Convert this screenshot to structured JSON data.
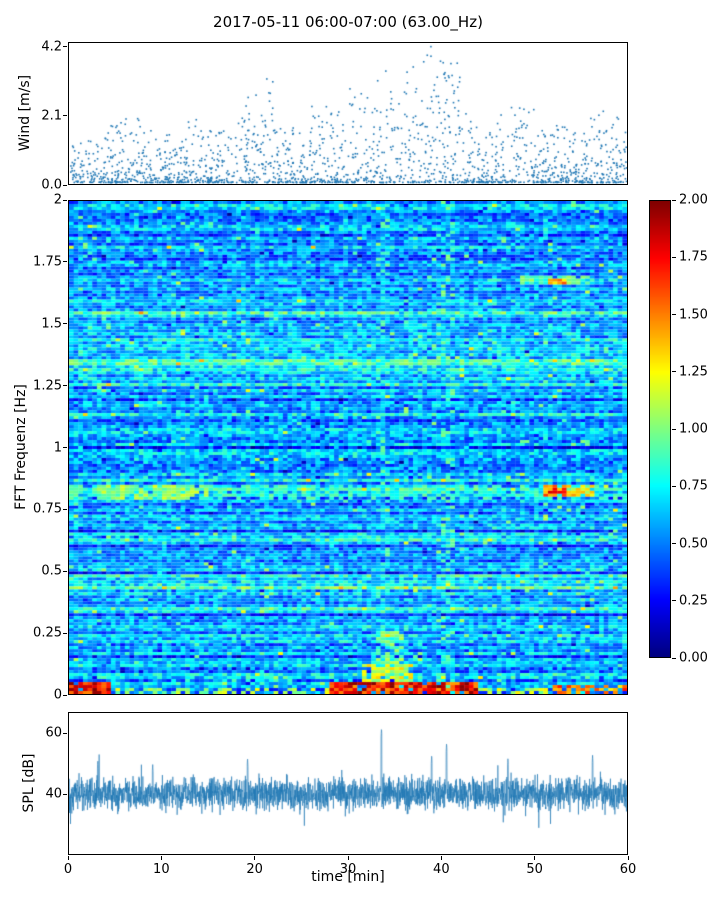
{
  "figure": {
    "title": "2017-05-11 06:00-07:00 (63.00_Hz)",
    "background": "#ffffff"
  },
  "chart_data": [
    {
      "id": "wind",
      "type": "scatter",
      "ylabel": "Wind [m/s]",
      "xlim": [
        0,
        60
      ],
      "ylim": [
        0,
        4.35
      ],
      "yticks": [
        "0.0",
        "2.1",
        "4.2"
      ],
      "ytick_values": [
        0.0,
        2.1,
        4.2
      ],
      "marker_color": "#1f77b4",
      "n_points": 1800,
      "mean_wind": 0.6,
      "max_envelope_per_2min": [
        1.5,
        1.4,
        1.9,
        2.0,
        1.6,
        1.5,
        2.0,
        1.6,
        1.6,
        2.7,
        3.3,
        1.8,
        1.7,
        2.5,
        2.2,
        3.0,
        3.5,
        2.8,
        3.7,
        4.2,
        3.9,
        2.2,
        1.7,
        2.4,
        2.3,
        1.7,
        1.8,
        1.6,
        2.2,
        2.1
      ]
    },
    {
      "id": "spectrogram",
      "type": "heatmap",
      "ylabel": "FFT Frequenz [Hz]",
      "xlim": [
        0,
        60
      ],
      "ylim": [
        0,
        2
      ],
      "yticks": [
        "2",
        "1.75",
        "1.5",
        "1.25",
        "1",
        "0.75",
        "0.5",
        "0.25",
        "0"
      ],
      "ytick_values": [
        2,
        1.75,
        1.5,
        1.25,
        1,
        0.75,
        0.5,
        0.25,
        0
      ],
      "colormap": "jet",
      "background_level": {
        "row_base_min": 0.45,
        "row_base_span": 0.25,
        "cell_noise": 0.4
      },
      "features": [
        {
          "f0": 0.0,
          "f1": 0.045,
          "x0": 0,
          "x1": 4.5,
          "value": 1.9,
          "density": 0.95
        },
        {
          "f0": 0.0,
          "f1": 0.05,
          "x0": 28,
          "x1": 44,
          "value": 1.85,
          "density": 0.9
        },
        {
          "f0": 0.0,
          "f1": 0.03,
          "x0": 5,
          "x1": 28,
          "value": 1.15,
          "density": 0.45
        },
        {
          "f0": 0.0,
          "f1": 0.03,
          "x0": 44,
          "x1": 51.5,
          "value": 1.2,
          "density": 0.5
        },
        {
          "f0": 0.0,
          "f1": 0.035,
          "x0": 51.5,
          "x1": 60,
          "value": 1.6,
          "density": 0.5
        },
        {
          "f0": 0.04,
          "f1": 0.09,
          "x0": 0,
          "x1": 60,
          "value": 0.9,
          "density": 0.2
        },
        {
          "f0": 0.05,
          "f1": 0.12,
          "x0": 31.5,
          "x1": 37,
          "value": 1.25,
          "density": 0.75
        },
        {
          "f0": 0.12,
          "f1": 0.26,
          "x0": 33,
          "x1": 36,
          "value": 1.05,
          "density": 0.6
        },
        {
          "f0": 0.79,
          "f1": 0.85,
          "x0": 0,
          "x1": 60,
          "value": 0.9,
          "density": 0.55
        },
        {
          "f0": 0.79,
          "f1": 0.85,
          "x0": 3,
          "x1": 15,
          "value": 1.1,
          "density": 0.7
        },
        {
          "f0": 0.805,
          "f1": 0.845,
          "x0": 51,
          "x1": 53.5,
          "value": 1.7,
          "density": 0.9
        },
        {
          "f0": 0.8,
          "f1": 0.845,
          "x0": 53.5,
          "x1": 56.5,
          "value": 1.35,
          "density": 0.85
        },
        {
          "f0": 1.655,
          "f1": 1.695,
          "x0": 48.5,
          "x1": 56,
          "value": 1.0,
          "density": 0.75
        },
        {
          "f0": 1.66,
          "f1": 1.69,
          "x0": 51.5,
          "x1": 53.5,
          "value": 1.6,
          "density": 0.9
        },
        {
          "f0": 0.0,
          "f1": 2.0,
          "x0": 39.8,
          "x1": 41.6,
          "value": 0.95,
          "density": 0.22
        },
        {
          "f0": 0.0,
          "f1": 2.0,
          "x0": 33.2,
          "x1": 34.6,
          "value": 0.9,
          "density": 0.18
        }
      ],
      "colorbar": {
        "vmin": 0,
        "vmax": 2,
        "ticks": [
          "2.00",
          "1.75",
          "1.50",
          "1.25",
          "1.00",
          "0.75",
          "0.50",
          "0.25",
          "0.00"
        ],
        "tick_values": [
          2,
          1.75,
          1.5,
          1.25,
          1,
          0.75,
          0.5,
          0.25,
          0
        ]
      }
    },
    {
      "id": "spl",
      "type": "line",
      "ylabel": "SPL [dB]",
      "xlabel": "time [min]",
      "xlim": [
        0,
        60
      ],
      "ylim": [
        20,
        67
      ],
      "yticks": [
        "40",
        "60"
      ],
      "ytick_values": [
        40,
        60
      ],
      "xticks": [
        "0",
        "10",
        "20",
        "30",
        "40",
        "50",
        "60"
      ],
      "xtick_values": [
        0,
        10,
        20,
        30,
        40,
        50,
        60
      ],
      "line_color": "#1f77b4",
      "baseline": 40,
      "noise_std": 3.0,
      "spikes": [
        {
          "x": 33.6,
          "value": 62
        },
        {
          "x": 40.6,
          "value": 57
        },
        {
          "x": 19.2,
          "value": 52
        },
        {
          "x": 39.0,
          "value": 53
        },
        {
          "x": 47.2,
          "value": 52
        },
        {
          "x": 56.3,
          "value": 53
        },
        {
          "x": 3.1,
          "value": 51
        },
        {
          "x": 9.0,
          "value": 50
        }
      ]
    }
  ]
}
